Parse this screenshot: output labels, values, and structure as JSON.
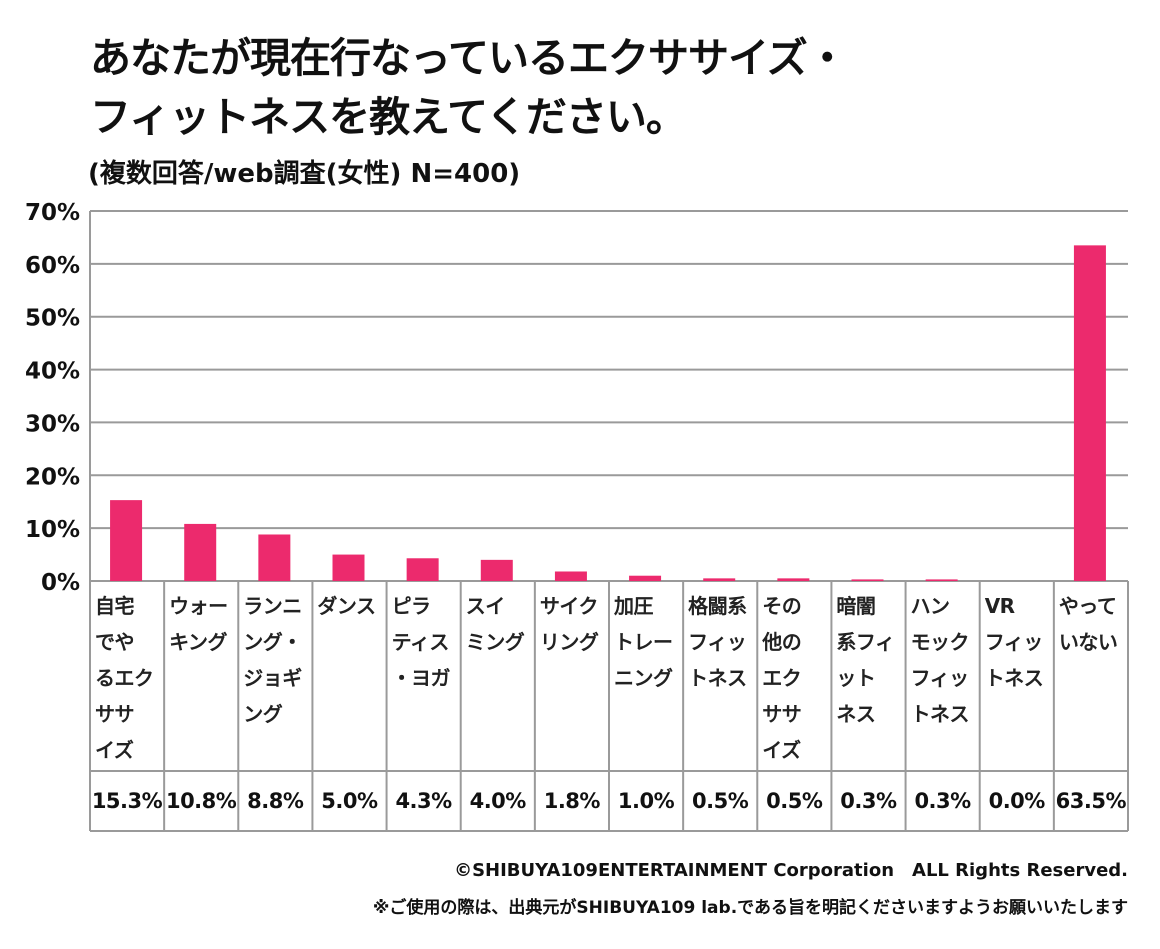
{
  "title_line1": "あなたが現在行なっているエクササイズ・",
  "title_line2": "フィットネスを教えてください。",
  "subtitle": "(複数回答/web調査(女性) N=400)",
  "footer_copyright": "©SHIBUYA109ENTERTAINMENT Corporation　ALL Rights Reserved.",
  "footer_note": "※ご使用の際は、出典元がSHIBUYA109 lab.である旨を明記くださいますようお願いいたします",
  "colors": {
    "bar": "#ec2a6d",
    "grid": "#9a9a9a"
  },
  "chart_data": {
    "type": "bar",
    "title": "あなたが現在行なっているエクササイズ・フィットネスを教えてください。",
    "ylim": [
      0,
      70
    ],
    "yticks": [
      0,
      10,
      20,
      30,
      40,
      50,
      60,
      70
    ],
    "ytick_labels": [
      "0%",
      "10%",
      "20%",
      "30%",
      "40%",
      "50%",
      "60%",
      "70%"
    ],
    "grid": true,
    "categories": [
      "自宅\nでや\nるエク\nササ\nイズ",
      "ウォー\nキング",
      "ランニ\nング・\nジョギ\nング",
      "ダンス",
      "ピラ\nティス\n・ヨガ",
      "スイ\nミング",
      "サイク\nリング",
      "加圧\nトレー\nニング",
      "格闘系\nフィッ\nトネス",
      "その\n他の\nエク\nササ\nイズ",
      "暗闇\n系フィ\nット\nネス",
      "ハン\nモック\nフィッ\nトネス",
      "VR\nフィッ\nトネス",
      "やって\nいない"
    ],
    "values": [
      15.3,
      10.8,
      8.8,
      5.0,
      4.3,
      4.0,
      1.8,
      1.0,
      0.5,
      0.5,
      0.3,
      0.3,
      0.0,
      63.5
    ],
    "value_labels": [
      "15.3%",
      "10.8%",
      "8.8%",
      "5.0%",
      "4.3%",
      "4.0%",
      "1.8%",
      "1.0%",
      "0.5%",
      "0.5%",
      "0.3%",
      "0.3%",
      "0.0%",
      "63.5%"
    ]
  }
}
